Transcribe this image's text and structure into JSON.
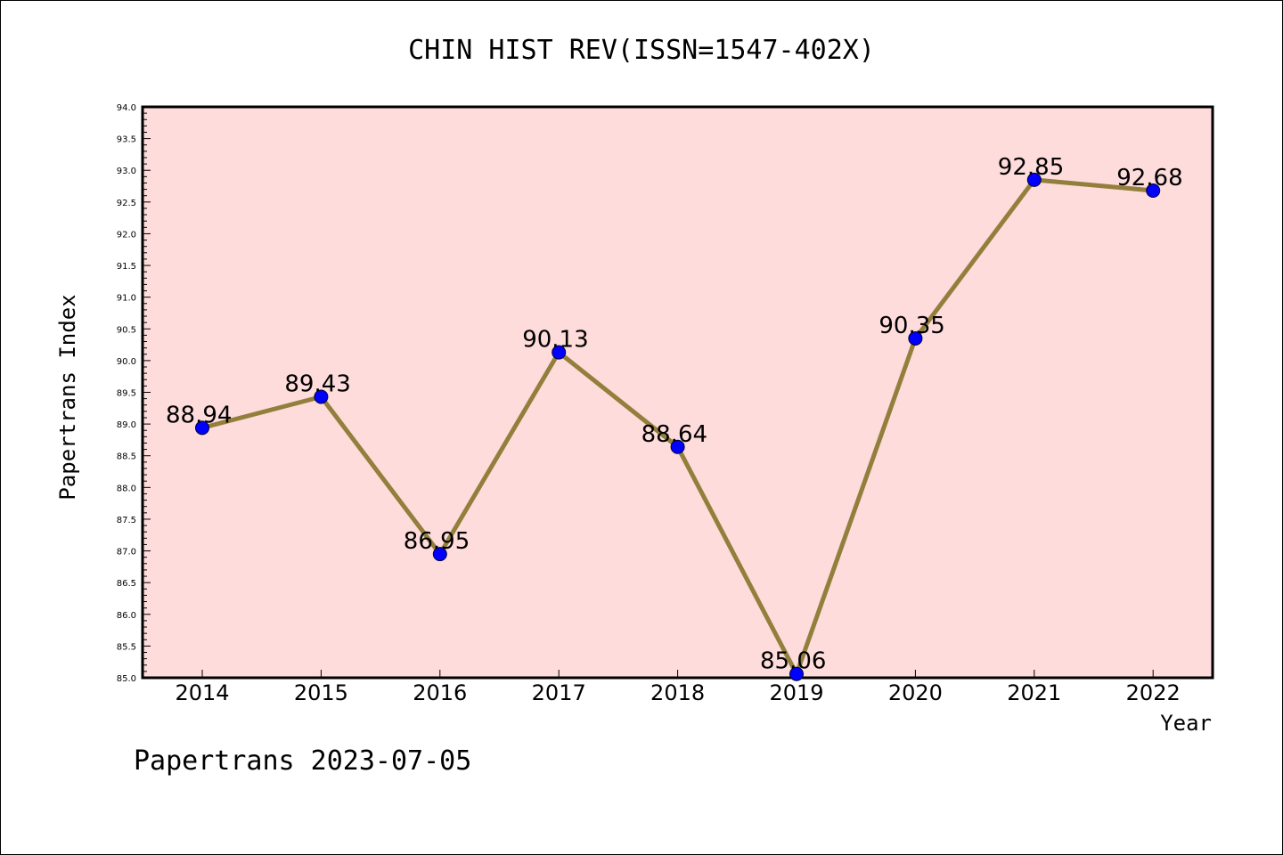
{
  "chart_data": {
    "type": "line",
    "title": "CHIN HIST REV(ISSN=1547-402X)",
    "xlabel": "Year",
    "ylabel": "Papertrans Index",
    "categories": [
      "2014",
      "2015",
      "2016",
      "2017",
      "2018",
      "2019",
      "2020",
      "2021",
      "2022"
    ],
    "series": [
      {
        "values": [
          88.94,
          89.43,
          86.95,
          90.13,
          88.64,
          85.06,
          90.35,
          92.85,
          92.68
        ],
        "labels": [
          "88.94",
          "89.43",
          "86.95",
          "90.13",
          "88.64",
          "85.06",
          "90.35",
          "92.85",
          "92.68"
        ]
      }
    ],
    "ylim": [
      85.0,
      94.0
    ],
    "yticks": [
      "85.0",
      "85.5",
      "86.0",
      "86.5",
      "87.0",
      "87.5",
      "88.0",
      "88.5",
      "89.0",
      "89.5",
      "90.0",
      "90.5",
      "91.0",
      "91.5",
      "92.0",
      "92.5",
      "93.0",
      "93.5",
      "94.0"
    ],
    "grid": false,
    "colors": {
      "plot_background": "#fddcdb",
      "line": "#937f3c",
      "marker": "#0000ff"
    }
  },
  "footer": {
    "text": "Papertrans 2023-07-05"
  }
}
